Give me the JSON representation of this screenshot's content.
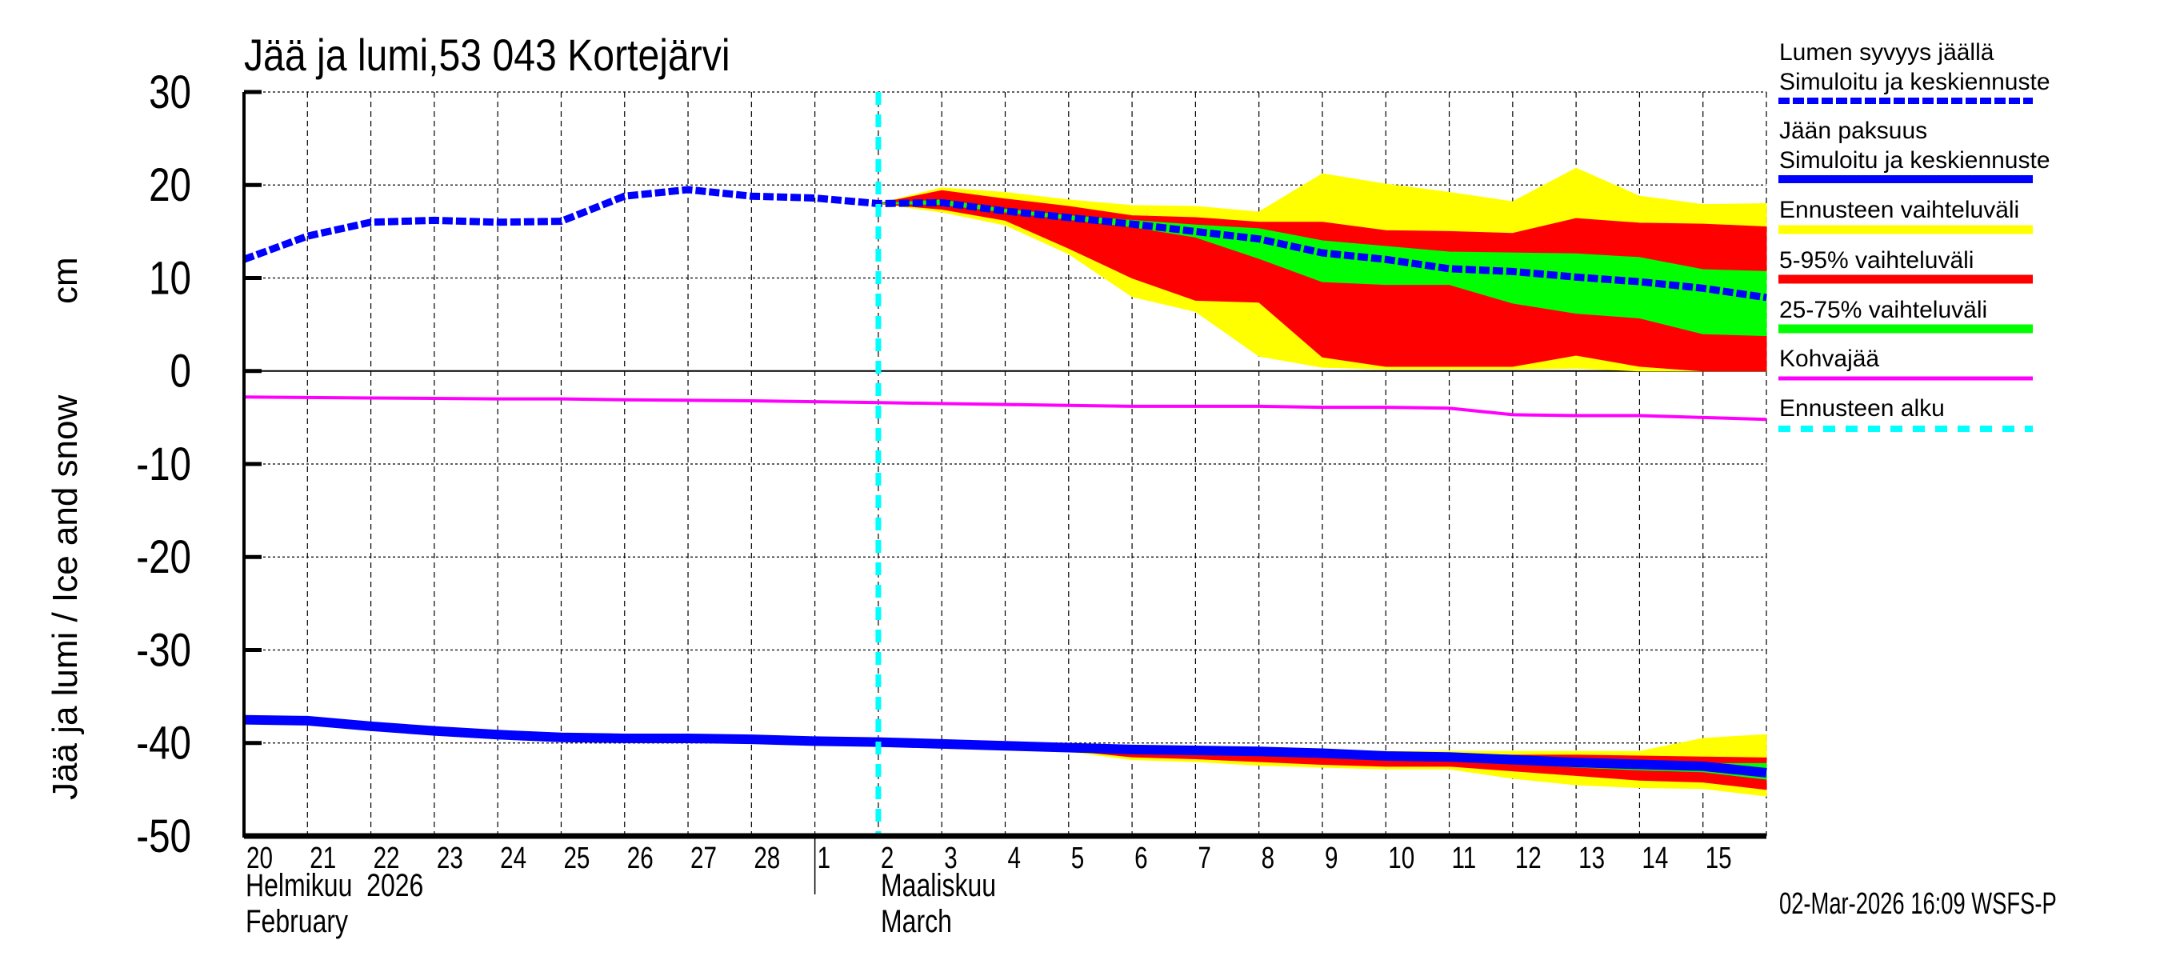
{
  "chart_data": {
    "type": "area",
    "title": "Jää ja lumi,53 043 Kortejärvi",
    "ylabel": "Jää ja lumi / Ice and snow",
    "yunit": "cm",
    "ylim": [
      -50,
      30
    ],
    "yticks": [
      30,
      20,
      10,
      0,
      -10,
      -20,
      -30,
      -40,
      -50
    ],
    "xlim": [
      "2026-02-20",
      "2026-03-16"
    ],
    "grid": true,
    "legend_position": "right",
    "x_tick_labels": [
      "20",
      "21",
      "22",
      "23",
      "24",
      "25",
      "26",
      "27",
      "28",
      "1",
      "2",
      "3",
      "4",
      "5",
      "6",
      "7",
      "8",
      "9",
      "10",
      "11",
      "12",
      "13",
      "14",
      "15"
    ],
    "month_labels": [
      {
        "fi": "Helmikuu  2026",
        "en": "February",
        "start": "2026-02-20"
      },
      {
        "fi": "Maaliskuu",
        "en": "March",
        "start": "2026-03-02"
      }
    ],
    "forecast_start": "2026-03-02",
    "dates": [
      "2026-02-20",
      "2026-02-21",
      "2026-02-22",
      "2026-02-23",
      "2026-02-24",
      "2026-02-25",
      "2026-02-26",
      "2026-02-27",
      "2026-02-28",
      "2026-03-01",
      "2026-03-02",
      "2026-03-03",
      "2026-03-04",
      "2026-03-05",
      "2026-03-06",
      "2026-03-07",
      "2026-03-08",
      "2026-03-09",
      "2026-03-10",
      "2026-03-11",
      "2026-03-12",
      "2026-03-13",
      "2026-03-14",
      "2026-03-15",
      "2026-03-16"
    ],
    "snow": {
      "name": "Lumen syvyys jäällä Simuloitu ja keskiennuste",
      "values": [
        12,
        14.5,
        16,
        16.2,
        16,
        16.1,
        18.8,
        19.5,
        18.8,
        18.6,
        18,
        18.1,
        17.2,
        16.5,
        15.8,
        15,
        14.2,
        12.7,
        12,
        11,
        10.7,
        10.1,
        9.6,
        8.9,
        7.9
      ],
      "bands": {
        "min_max": {
          "top": [
            18,
            19.7,
            19.2,
            18.4,
            17.8,
            17.7,
            17.1,
            21.2,
            20.1,
            19.2,
            18.2,
            21.8,
            18.8,
            17.9,
            18
          ],
          "bottom": [
            18,
            17.1,
            15.7,
            12.6,
            8,
            6.4,
            1.6,
            0.4,
            0.2,
            0.2,
            0.2,
            0.3,
            0,
            0,
            0
          ]
        },
        "p5_95": {
          "top": [
            18,
            19.4,
            18.5,
            17.7,
            16.7,
            16.5,
            16,
            16,
            15.1,
            15,
            14.8,
            16.4,
            15.9,
            15.8,
            15.5
          ],
          "bottom": [
            18,
            17.4,
            16.2,
            13.2,
            10,
            7.6,
            7.4,
            1.5,
            0.5,
            0.5,
            0.5,
            1.7,
            0.5,
            0,
            0
          ]
        },
        "p25_75": {
          "top": [
            18,
            18.4,
            17.4,
            16.7,
            16.2,
            15.7,
            15.3,
            14,
            13.4,
            12.8,
            12.7,
            12.6,
            12.2,
            10.9,
            10.7
          ],
          "bottom": [
            18,
            17.9,
            17.1,
            16.3,
            15.5,
            14.4,
            12.1,
            9.6,
            9.3,
            9.3,
            7.3,
            6.2,
            5.7,
            4,
            3.8
          ]
        }
      }
    },
    "ice": {
      "name": "Jään paksuus Simuloitu ja keskiennuste",
      "values": [
        -37.5,
        -37.6,
        -38.2,
        -38.7,
        -39.1,
        -39.4,
        -39.5,
        -39.5,
        -39.6,
        -39.8,
        -39.9,
        -40.1,
        -40.3,
        -40.5,
        -40.7,
        -40.8,
        -40.9,
        -41.1,
        -41.4,
        -41.5,
        -41.8,
        -42.1,
        -42.3,
        -42.5,
        -43.2
      ],
      "bands": {
        "min_max": {
          "top": [
            -39.9,
            -40.1,
            -40.3,
            -40.5,
            -40.4,
            -40.4,
            -40.6,
            -40.7,
            -40.9,
            -40.9,
            -40.9,
            -40.9,
            -40.9,
            -39.5,
            -39.1
          ],
          "bottom": [
            -39.9,
            -40.1,
            -40.3,
            -40.9,
            -41.8,
            -42,
            -42.4,
            -42.6,
            -42.8,
            -42.8,
            -43.8,
            -44.5,
            -44.8,
            -44.9,
            -45.7
          ]
        },
        "p5_95": {
          "top": [
            -39.9,
            -40.1,
            -40.3,
            -40.5,
            -40.6,
            -40.7,
            -40.8,
            -40.9,
            -41,
            -41.2,
            -41.3,
            -41.3,
            -41.4,
            -41.5,
            -41.6
          ],
          "bottom": [
            -39.9,
            -40.1,
            -40.3,
            -40.8,
            -41.5,
            -41.7,
            -42,
            -42.3,
            -42.5,
            -42.5,
            -43,
            -43.5,
            -44,
            -44.2,
            -45
          ]
        },
        "p25_75": {
          "top": [
            -39.9,
            -40.1,
            -40.3,
            -40.5,
            -40.7,
            -40.8,
            -40.9,
            -41.1,
            -41.4,
            -41.5,
            -41.7,
            -41.9,
            -42,
            -42.2,
            -42.2
          ],
          "bottom": [
            -39.9,
            -40.1,
            -40.3,
            -40.5,
            -40.7,
            -40.8,
            -40.9,
            -41.1,
            -41.5,
            -41.8,
            -42.2,
            -42.6,
            -42.9,
            -43.1,
            -43.9
          ]
        }
      }
    },
    "slush_ice": {
      "name": "Kohvajää",
      "values": [
        -2.8,
        -2.85,
        -2.9,
        -2.95,
        -3,
        -3,
        -3.1,
        -3.15,
        -3.2,
        -3.3,
        -3.4,
        -3.5,
        -3.6,
        -3.7,
        -3.8,
        -3.8,
        -3.8,
        -3.9,
        -3.9,
        -4,
        -4.7,
        -4.8,
        -4.8,
        -5,
        -5.2
      ]
    },
    "legend": [
      {
        "line1": "Lumen syvyys jäällä",
        "line2": "Simuloitu ja keskiennuste",
        "color": "#0000ff",
        "style": "dashed"
      },
      {
        "line1": "Jään paksuus",
        "line2": "Simuloitu ja keskiennuste",
        "color": "#0000ff",
        "style": "solid"
      },
      {
        "line1": "Ennusteen vaihteluväli",
        "color": "#ffff00",
        "style": "band"
      },
      {
        "line1": "5-95% vaihteluväli",
        "color": "#ff0000",
        "style": "band"
      },
      {
        "line1": "25-75% vaihteluväli",
        "color": "#00ff00",
        "style": "band"
      },
      {
        "line1": "Kohvajää",
        "color": "#ff00ff",
        "style": "solid"
      },
      {
        "line1": "Ennusteen alku",
        "color": "#00ffff",
        "style": "dashed"
      }
    ],
    "colors": {
      "line": "#0000ff",
      "minmax": "#ffff00",
      "p5_95": "#ff0000",
      "p25_75": "#00ff00",
      "slush": "#ff00ff",
      "forecast_start": "#00ffff"
    },
    "footer": "02-Mar-2026 16:09 WSFS-P"
  }
}
